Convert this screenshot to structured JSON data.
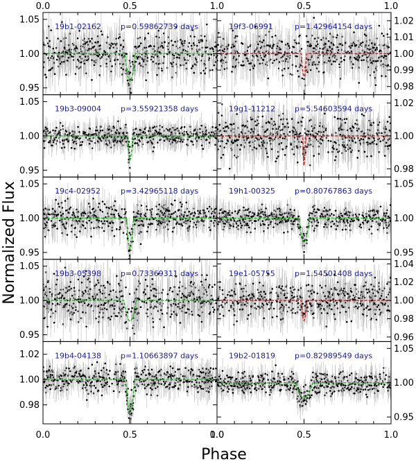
{
  "chart_data": {
    "type": "scatter",
    "xlabel": "Phase",
    "ylabel": "Normalized Flux",
    "xlim": [
      0.0,
      1.0
    ],
    "x_ticks": [
      0.0,
      0.5,
      1.0
    ],
    "x_tick_labels": [
      "0.0",
      "0.5",
      "1.0"
    ],
    "label_color": "#1a1aa8",
    "model_colors": {
      "green": "#22bb22",
      "red": "#dd2222"
    },
    "panels": [
      {
        "name": "19b1-02162",
        "period": "p=0.59862739 days",
        "column": "left",
        "row": 0,
        "model_color": "green",
        "ylim": [
          0.94,
          1.06
        ],
        "y_ticks": [
          0.95,
          1.0,
          1.05
        ],
        "y_tick_labels": [
          "0.95",
          "1.00",
          "1.05"
        ],
        "eclipse_phase": 0.5,
        "eclipse_depth": 0.04,
        "eclipse_width": 0.06,
        "scatter": 0.014
      },
      {
        "name": "19f3-06991",
        "period": "p=1.42964154 days",
        "column": "right",
        "row": 0,
        "model_color": "red",
        "ylim": [
          0.975,
          1.025
        ],
        "y_ticks": [
          0.98,
          0.99,
          1.0,
          1.01,
          1.02
        ],
        "y_tick_labels": [
          "0.98",
          "0.99",
          "1.00",
          "1.01",
          "1.02"
        ],
        "eclipse_phase": 0.5,
        "eclipse_depth": 0.014,
        "eclipse_width": 0.03,
        "scatter": 0.006
      },
      {
        "name": "19b3-09004",
        "period": "p=3.55921358 days",
        "column": "left",
        "row": 1,
        "model_color": "green",
        "ylim": [
          0.94,
          1.06
        ],
        "y_ticks": [
          0.95,
          1.0,
          1.05
        ],
        "y_tick_labels": [
          "0.95",
          "1.00",
          "1.05"
        ],
        "eclipse_phase": 0.5,
        "eclipse_depth": 0.035,
        "eclipse_width": 0.03,
        "scatter": 0.008
      },
      {
        "name": "19g1-11212",
        "period": "p=5.54603594 days",
        "column": "right",
        "row": 1,
        "model_color": "red",
        "ylim": [
          0.975,
          1.025
        ],
        "y_ticks": [
          0.98,
          1.0,
          1.02
        ],
        "y_tick_labels": [
          "0.98",
          "1.00",
          "1.02"
        ],
        "eclipse_phase": 0.5,
        "eclipse_depth": 0.018,
        "eclipse_width": 0.015,
        "scatter": 0.006
      },
      {
        "name": "19c4-02952",
        "period": "p=3.42965118 days",
        "column": "left",
        "row": 2,
        "model_color": "green",
        "ylim": [
          0.94,
          1.06
        ],
        "y_ticks": [
          0.95,
          1.0,
          1.05
        ],
        "y_tick_labels": [
          "0.95",
          "1.00",
          "1.05"
        ],
        "eclipse_phase": 0.5,
        "eclipse_depth": 0.045,
        "eclipse_width": 0.04,
        "scatter": 0.01
      },
      {
        "name": "19h1-00325",
        "period": "p=0.80767863 days",
        "column": "right",
        "row": 2,
        "model_color": "green",
        "ylim": [
          0.94,
          1.06
        ],
        "y_ticks": [
          0.95,
          1.0,
          1.05
        ],
        "y_tick_labels": [
          "0.95",
          "1.00",
          "1.05"
        ],
        "eclipse_phase": 0.5,
        "eclipse_depth": 0.035,
        "eclipse_width": 0.06,
        "scatter": 0.008
      },
      {
        "name": "19b3-05398",
        "period": "p=0.73369311 days",
        "column": "left",
        "row": 3,
        "model_color": "green",
        "ylim": [
          0.94,
          1.06
        ],
        "y_ticks": [
          0.95,
          1.0,
          1.05
        ],
        "y_tick_labels": [
          "0.95",
          "1.00",
          "1.05"
        ],
        "eclipse_phase": 0.5,
        "eclipse_depth": 0.03,
        "eclipse_width": 0.07,
        "scatter": 0.016
      },
      {
        "name": "19e1-05755",
        "period": "p=1.54501408 days",
        "column": "right",
        "row": 3,
        "model_color": "red",
        "ylim": [
          0.955,
          1.045
        ],
        "y_ticks": [
          0.96,
          0.98,
          1.0,
          1.02,
          1.04
        ],
        "y_tick_labels": [
          "0.96",
          "0.98",
          "1.00",
          "1.02",
          "1.04"
        ],
        "eclipse_phase": 0.5,
        "eclipse_depth": 0.022,
        "eclipse_width": 0.03,
        "scatter": 0.01
      },
      {
        "name": "19b4-04138",
        "period": "p=1.10663897 days",
        "column": "left",
        "row": 4,
        "model_color": "green",
        "ylim": [
          0.965,
          1.03
        ],
        "y_ticks": [
          0.98,
          1.0,
          1.02
        ],
        "y_tick_labels": [
          "0.98",
          "1.00",
          "1.02"
        ],
        "eclipse_phase": 0.5,
        "eclipse_depth": 0.025,
        "eclipse_width": 0.05,
        "scatter": 0.005
      },
      {
        "name": "19b2-01819",
        "period": "p=0.82989549 days",
        "column": "right",
        "row": 4,
        "model_color": "green",
        "ylim": [
          0.94,
          1.06
        ],
        "y_ticks": [
          0.95,
          1.0,
          1.05
        ],
        "y_tick_labels": [
          "0.95",
          "1.00",
          "1.05"
        ],
        "eclipse_phase": 0.5,
        "eclipse_depth": 0.022,
        "eclipse_width": 0.1,
        "scatter": 0.008
      }
    ]
  }
}
